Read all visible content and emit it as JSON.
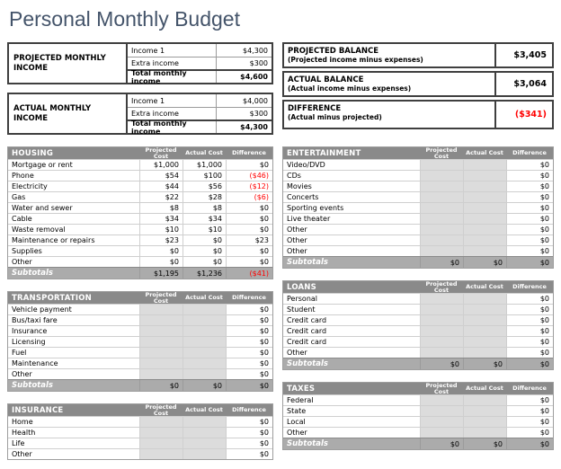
{
  "title": "Personal Monthly Budget",
  "colors": {
    "title_text": "#44546A",
    "negative_value": "#FF0000",
    "section_header_bg": "#8A8A8A",
    "subtotal_bg": "#ABABAB",
    "empty_cell_bg": "#DCDCDC"
  },
  "income_tables": [
    {
      "label": "PROJECTED MONTHLY INCOME",
      "rows": [
        {
          "label": "Income 1",
          "value": "$4,300"
        },
        {
          "label": "Extra income",
          "value": "$300"
        }
      ],
      "total": {
        "label": "Total monthly income",
        "value": "$4,600"
      }
    },
    {
      "label": "ACTUAL MONTHLY INCOME",
      "rows": [
        {
          "label": "Income 1",
          "value": "$4,000"
        },
        {
          "label": "Extra income",
          "value": "$300"
        }
      ],
      "total": {
        "label": "Total monthly income",
        "value": "$4,300"
      }
    }
  ],
  "summary_boxes": [
    {
      "title": "PROJECTED BALANCE",
      "subtitle": "(Projected income minus expenses)",
      "value": "$3,405"
    },
    {
      "title": "ACTUAL BALANCE",
      "subtitle": "(Actual income minus expenses)",
      "value": "$3,064"
    },
    {
      "title": "DIFFERENCE",
      "subtitle": "(Actual minus projected)",
      "value": "($341)"
    }
  ],
  "expense_headers": [
    "Projected Cost",
    "Actual Cost",
    "Difference"
  ],
  "subtotals_label": "Subtotals",
  "expense_columns": {
    "left": [
      {
        "name": "HOUSING",
        "rows": [
          [
            "Mortgage or rent",
            "$1,000",
            "$1,000",
            "$0"
          ],
          [
            "Phone",
            "$54",
            "$100",
            "($46)"
          ],
          [
            "Electricity",
            "$44",
            "$56",
            "($12)"
          ],
          [
            "Gas",
            "$22",
            "$28",
            "($6)"
          ],
          [
            "Water and sewer",
            "$8",
            "$8",
            "$0"
          ],
          [
            "Cable",
            "$34",
            "$34",
            "$0"
          ],
          [
            "Waste removal",
            "$10",
            "$10",
            "$0"
          ],
          [
            "Maintenance or repairs",
            "$23",
            "$0",
            "$23"
          ],
          [
            "Supplies",
            "$0",
            "$0",
            "$0"
          ],
          [
            "Other",
            "$0",
            "$0",
            "$0"
          ]
        ],
        "subtotals": [
          "$1,195",
          "$1,236",
          "($41)"
        ]
      },
      {
        "name": "TRANSPORTATION",
        "rows": [
          [
            "Vehicle payment",
            "",
            "",
            "$0"
          ],
          [
            "Bus/taxi fare",
            "",
            "",
            "$0"
          ],
          [
            "Insurance",
            "",
            "",
            "$0"
          ],
          [
            "Licensing",
            "",
            "",
            "$0"
          ],
          [
            "Fuel",
            "",
            "",
            "$0"
          ],
          [
            "Maintenance",
            "",
            "",
            "$0"
          ],
          [
            "Other",
            "",
            "",
            "$0"
          ]
        ],
        "subtotals": [
          "$0",
          "$0",
          "$0"
        ]
      },
      {
        "name": "INSURANCE",
        "rows": [
          [
            "Home",
            "",
            "",
            "$0"
          ],
          [
            "Health",
            "",
            "",
            "$0"
          ],
          [
            "Life",
            "",
            "",
            "$0"
          ],
          [
            "Other",
            "",
            "",
            "$0"
          ]
        ]
      }
    ],
    "right": [
      {
        "name": "ENTERTAINMENT",
        "rows": [
          [
            "Video/DVD",
            "",
            "",
            "$0"
          ],
          [
            "CDs",
            "",
            "",
            "$0"
          ],
          [
            "Movies",
            "",
            "",
            "$0"
          ],
          [
            "Concerts",
            "",
            "",
            "$0"
          ],
          [
            "Sporting events",
            "",
            "",
            "$0"
          ],
          [
            "Live theater",
            "",
            "",
            "$0"
          ],
          [
            "Other",
            "",
            "",
            "$0"
          ],
          [
            "Other",
            "",
            "",
            "$0"
          ],
          [
            "Other",
            "",
            "",
            "$0"
          ]
        ],
        "subtotals": [
          "$0",
          "$0",
          "$0"
        ]
      },
      {
        "name": "LOANS",
        "rows": [
          [
            "Personal",
            "",
            "",
            "$0"
          ],
          [
            "Student",
            "",
            "",
            "$0"
          ],
          [
            "Credit card",
            "",
            "",
            "$0"
          ],
          [
            "Credit card",
            "",
            "",
            "$0"
          ],
          [
            "Credit card",
            "",
            "",
            "$0"
          ],
          [
            "Other",
            "",
            "",
            "$0"
          ]
        ],
        "subtotals": [
          "$0",
          "$0",
          "$0"
        ]
      },
      {
        "name": "TAXES",
        "rows": [
          [
            "Federal",
            "",
            "",
            "$0"
          ],
          [
            "State",
            "",
            "",
            "$0"
          ],
          [
            "Local",
            "",
            "",
            "$0"
          ],
          [
            "Other",
            "",
            "",
            "$0"
          ]
        ],
        "subtotals": [
          "$0",
          "$0",
          "$0"
        ]
      }
    ]
  }
}
